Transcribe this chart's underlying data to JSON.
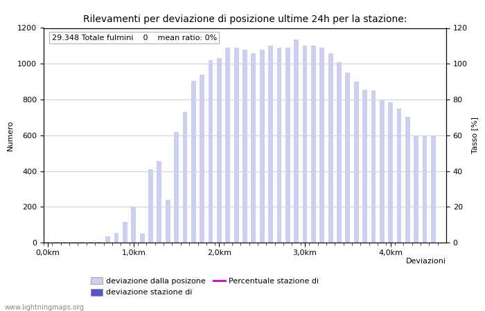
{
  "title": "Rilevamenti per deviazione di posizione ultime 24h per la stazione:",
  "subtitle": "29.348 Totale fulmini    0    mean ratio: 0%",
  "xlabel": "Deviazioni",
  "ylabel_left": "Numero",
  "ylabel_right": "Tasso [%]",
  "watermark": "www.lightningmaps.org",
  "bar_color_light": "#ccd0ee",
  "bar_color_dark": "#5555cc",
  "line_color": "#cc00cc",
  "background_color": "#ffffff",
  "xlim": [
    -0.5,
    46.5
  ],
  "ylim_left": [
    0,
    1200
  ],
  "ylim_right": [
    0,
    120
  ],
  "xtick_positions": [
    0,
    10,
    20,
    30,
    40
  ],
  "xtick_labels": [
    "0,0km",
    "1,0km",
    "2,0km",
    "3,0km",
    "4,0km"
  ],
  "ytick_left": [
    0,
    200,
    400,
    600,
    800,
    1000,
    1200
  ],
  "ytick_right": [
    0,
    20,
    40,
    60,
    80,
    100,
    120
  ],
  "bar_values": [
    5,
    5,
    5,
    5,
    5,
    5,
    5,
    35,
    55,
    115,
    200,
    50,
    410,
    455,
    240,
    620,
    730,
    905,
    940,
    1020,
    1030,
    1090,
    1090,
    1080,
    1060,
    1080,
    1100,
    1090,
    1090,
    1135,
    1100,
    1100,
    1090,
    1060,
    1010,
    950,
    900,
    855,
    850,
    800,
    785,
    750,
    705,
    600,
    600,
    600
  ],
  "n_bars": 46,
  "legend_entry_0": "deviazione dalla posizone",
  "legend_entry_1": "deviazione stazione di",
  "legend_entry_2": "Percentuale stazione di",
  "fig_width": 7.0,
  "fig_height": 4.5,
  "dpi": 100,
  "bar_width": 0.55,
  "title_fontsize": 10,
  "axis_fontsize": 8,
  "subtitle_fontsize": 8
}
